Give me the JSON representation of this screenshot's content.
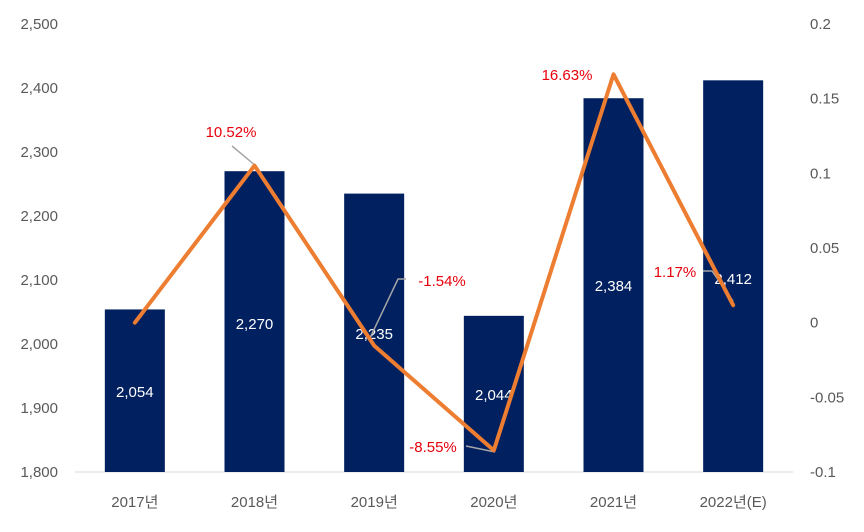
{
  "chart_data": {
    "type": "bar+line",
    "categories": [
      "2017년",
      "2018년",
      "2019년",
      "2020년",
      "2021년",
      "2022년(E)"
    ],
    "series": [
      {
        "name": "bar",
        "axis": "left",
        "values": [
          2054,
          2270,
          2235,
          2044,
          2384,
          2412
        ],
        "value_labels": [
          "2,054",
          "2,270",
          "2,235",
          "2,044",
          "2,384",
          "2,412"
        ],
        "color": "#002060"
      },
      {
        "name": "growth",
        "axis": "right",
        "values": [
          0.0,
          0.1052,
          -0.0154,
          -0.0855,
          0.1663,
          0.0117
        ],
        "value_labels": [
          "",
          "10.52%",
          "-1.54%",
          "-8.55%",
          "16.63%",
          "1.17%"
        ],
        "color": "#ed7d31",
        "label_color": "#e8000b"
      }
    ],
    "y_left": {
      "range": [
        1800,
        2500
      ],
      "ticks": [
        1800,
        1900,
        2000,
        2100,
        2200,
        2300,
        2400,
        2500
      ],
      "tick_labels": [
        "1,800",
        "1,900",
        "2,000",
        "2,100",
        "2,200",
        "2,300",
        "2,400",
        "2,500"
      ]
    },
    "y_right": {
      "range": [
        -0.1,
        0.2
      ],
      "ticks": [
        -0.1,
        -0.05,
        0,
        0.05,
        0.1,
        0.15,
        0.2
      ],
      "tick_labels": [
        "-0.1",
        "-0.05",
        "0",
        "0.05",
        "0.1",
        "0.15",
        "0.2"
      ]
    },
    "title": "",
    "xlabel": "",
    "ylabel": "",
    "grid": false,
    "legend": "none"
  }
}
